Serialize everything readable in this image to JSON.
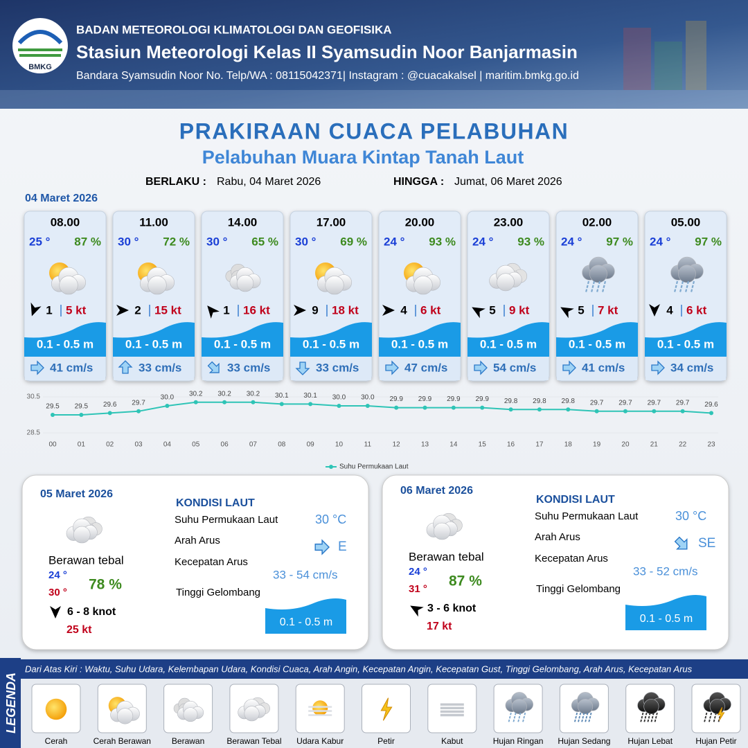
{
  "header": {
    "logo": "BMKG",
    "org": "BADAN METEOROLOGI KLIMATOLOGI DAN GEOFISIKA",
    "station": "Stasiun Meteorologi Kelas II Syamsudin Noor Banjarmasin",
    "contact": "Bandara Syamsudin Noor No. Telp/WA : 08115042371| Instagram : @cuacakalsel | maritim.bmkg.go.id"
  },
  "title": "PRAKIRAAN CUACA PELABUHAN",
  "subtitle": "Pelabuhan Muara Kintap Tanah Laut",
  "validity": {
    "from_label": "BERLAKU :",
    "from": "Rabu, 04 Maret 2026",
    "to_label": "HINGGA :",
    "to": "Jumat, 06 Maret 2026"
  },
  "forecast": {
    "date": "04 Maret 2026",
    "cards": [
      {
        "time": "08.00",
        "temp": "25 °",
        "rh": "87 %",
        "wind_speed": 1,
        "gust": "5 kt",
        "wave": "0.1 - 0.5 m",
        "current": "41 cm/s"
      },
      {
        "time": "11.00",
        "temp": "30 °",
        "rh": "72 %",
        "wind_speed": 2,
        "gust": "15 kt",
        "wave": "0.1 - 0.5 m",
        "current": "33 cm/s"
      },
      {
        "time": "14.00",
        "temp": "30 °",
        "rh": "65 %",
        "wind_speed": 1,
        "gust": "16 kt",
        "wave": "0.1 - 0.5 m",
        "current": "33 cm/s"
      },
      {
        "time": "17.00",
        "temp": "30 °",
        "rh": "69 %",
        "wind_speed": 9,
        "gust": "18 kt",
        "wave": "0.1 - 0.5 m",
        "current": "33 cm/s"
      },
      {
        "time": "20.00",
        "temp": "24 °",
        "rh": "93 %",
        "wind_speed": 4,
        "gust": "6 kt",
        "wave": "0.1 - 0.5 m",
        "current": "47 cm/s"
      },
      {
        "time": "23.00",
        "temp": "24 °",
        "rh": "93 %",
        "wind_speed": 5,
        "gust": "9 kt",
        "wave": "0.1 - 0.5 m",
        "current": "54 cm/s"
      },
      {
        "time": "02.00",
        "temp": "24 °",
        "rh": "97 %",
        "wind_speed": 5,
        "gust": "7 kt",
        "wave": "0.1 - 0.5 m",
        "current": "41 cm/s"
      },
      {
        "time": "05.00",
        "temp": "24 °",
        "rh": "97 %",
        "wind_speed": 4,
        "gust": "6 kt",
        "wave": "0.1 - 0.5 m",
        "current": "34 cm/s"
      }
    ]
  },
  "chart_data": {
    "type": "line",
    "categories": [
      "00",
      "01",
      "02",
      "03",
      "04",
      "05",
      "06",
      "07",
      "08",
      "09",
      "10",
      "11",
      "12",
      "13",
      "14",
      "15",
      "16",
      "17",
      "18",
      "19",
      "20",
      "21",
      "22",
      "23"
    ],
    "series": [
      {
        "name": "Suhu Permukaan Laut",
        "color": "#2ec4b6",
        "values": [
          29.5,
          29.5,
          29.6,
          29.7,
          30.0,
          30.2,
          30.2,
          30.2,
          30.1,
          30.1,
          30.0,
          30.0,
          29.9,
          29.9,
          29.9,
          29.9,
          29.8,
          29.8,
          29.8,
          29.7,
          29.7,
          29.7,
          29.7,
          29.6
        ],
        "value_labels": [
          "29.5",
          "29.5",
          "29.6",
          "29.7",
          "30.0",
          "30.2",
          "30.2",
          "30.2",
          "30.1",
          "30.1",
          "30.0",
          "30.0",
          "29.9",
          "29.9",
          "29.9",
          "29.9",
          "29.8",
          "29.8",
          "29.8",
          "29.7",
          "29.7",
          "29.7",
          "29.7",
          "29.6"
        ]
      }
    ],
    "ylim": [
      28.5,
      30.5
    ],
    "yticks": [
      28.5,
      30.5
    ],
    "legend": "bottom"
  },
  "days": [
    {
      "date": "05 Maret 2026",
      "condition": "Berawan tebal",
      "tmin": "24 °",
      "tmax": "30 °",
      "rh": "78 %",
      "wind": "6  - 8 knot",
      "gust": "25 kt",
      "sea_title": "KONDISI LAUT",
      "sst_label": "Suhu Permukaan Laut",
      "sst": "30 °C",
      "dir_label": "Arah Arus",
      "dir": "E",
      "speed_label": "Kecepatan Arus",
      "speed": "33 - 54 cm/s",
      "wave_label": "Tinggi Gelombang",
      "wave": "0.1 - 0.5 m"
    },
    {
      "date": "06 Maret 2026",
      "condition": "Berawan tebal",
      "tmin": "24 °",
      "tmax": "31 °",
      "rh": "87 %",
      "wind": "3 - 6 knot",
      "gust": "17 kt",
      "sea_title": "KONDISI LAUT",
      "sst_label": "Suhu Permukaan Laut",
      "sst": "30 °C",
      "dir_label": "Arah Arus",
      "dir": "SE",
      "speed_label": "Kecepatan Arus",
      "speed": "33 - 52 cm/s",
      "wave_label": "Tinggi Gelombang",
      "wave": "0.1 - 0.5 m"
    }
  ],
  "legend": {
    "title": "LEGENDA",
    "description": "Dari Atas Kiri : Waktu, Suhu Udara, Kelembapan Udara, Kondisi Cuaca, Arah Angin, Kecepatan Angin, Kecepatan Gust, Tinggi Gelombang, Arah Arus, Kecepatan Arus",
    "items": [
      "Cerah",
      "Cerah Berawan",
      "Berawan",
      "Berawan Tebal",
      "Udara Kabur",
      "Petir",
      "Kabut",
      "Hujan Ringan",
      "Hujan Sedang",
      "Hujan Lebat",
      "Hujan Petir"
    ]
  }
}
